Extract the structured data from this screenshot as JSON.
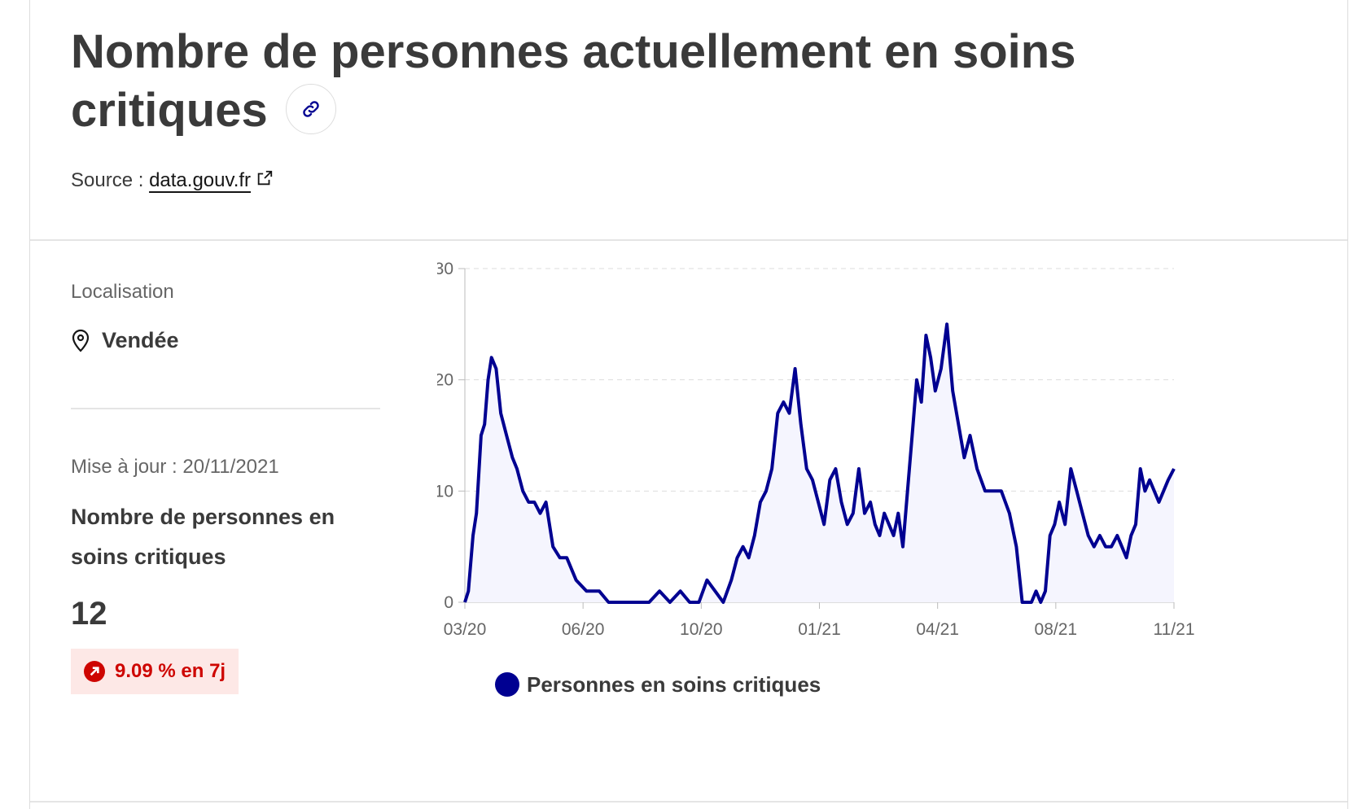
{
  "header": {
    "title": "Nombre de personnes actuellement en soins critiques",
    "source_label": "Source :",
    "source_link": "data.gouv.fr"
  },
  "sidebar": {
    "location_label": "Localisation",
    "location_value": "Vendée",
    "update_text": "Mise à jour : 20/11/2021",
    "metric_title": "Nombre de personnes en soins critiques",
    "metric_value": "12",
    "trend_text": "9.09 % en 7j"
  },
  "colors": {
    "series": "#000091",
    "fill": "#f5f5fe",
    "trend": "#ce0500",
    "trend_bg": "#fde8e6"
  },
  "icons": {
    "link": "link-icon",
    "external": "external-link-icon",
    "location": "map-pin-icon",
    "trend": "arrow-up-right-icon"
  },
  "chart_data": {
    "type": "area",
    "title": "",
    "xlabel": "",
    "ylabel": "",
    "ylim": [
      0,
      30
    ],
    "yticks": [
      "0",
      "10",
      "20",
      "30"
    ],
    "xticks": [
      "03/20",
      "06/20",
      "10/20",
      "01/21",
      "04/21",
      "08/21",
      "11/21"
    ],
    "grid": true,
    "legend_position": "bottom",
    "series": [
      {
        "name": "Personnes en soins critiques",
        "x": [
          "2020-03-18",
          "2020-03-21",
          "2020-03-25",
          "2020-03-28",
          "2020-04-01",
          "2020-04-04",
          "2020-04-07",
          "2020-04-10",
          "2020-04-14",
          "2020-04-18",
          "2020-04-23",
          "2020-04-28",
          "2020-05-02",
          "2020-05-07",
          "2020-05-12",
          "2020-05-17",
          "2020-05-22",
          "2020-05-27",
          "2020-06-02",
          "2020-06-08",
          "2020-06-14",
          "2020-06-22",
          "2020-07-01",
          "2020-07-12",
          "2020-07-20",
          "2020-07-28",
          "2020-08-05",
          "2020-08-14",
          "2020-08-24",
          "2020-09-02",
          "2020-09-11",
          "2020-09-20",
          "2020-09-28",
          "2020-10-06",
          "2020-10-13",
          "2020-10-20",
          "2020-10-27",
          "2020-11-03",
          "2020-11-08",
          "2020-11-13",
          "2020-11-18",
          "2020-11-23",
          "2020-11-28",
          "2020-12-03",
          "2020-12-08",
          "2020-12-13",
          "2020-12-18",
          "2020-12-23",
          "2020-12-28",
          "2021-01-02",
          "2021-01-07",
          "2021-01-12",
          "2021-01-17",
          "2021-01-22",
          "2021-01-27",
          "2021-02-01",
          "2021-02-06",
          "2021-02-11",
          "2021-02-16",
          "2021-02-21",
          "2021-02-26",
          "2021-03-03",
          "2021-03-07",
          "2021-03-11",
          "2021-03-15",
          "2021-03-19",
          "2021-03-23",
          "2021-03-27",
          "2021-03-31",
          "2021-04-04",
          "2021-04-08",
          "2021-04-12",
          "2021-04-16",
          "2021-04-20",
          "2021-04-24",
          "2021-04-28",
          "2021-05-03",
          "2021-05-08",
          "2021-05-13",
          "2021-05-18",
          "2021-05-23",
          "2021-05-28",
          "2021-06-03",
          "2021-06-10",
          "2021-06-17",
          "2021-06-24",
          "2021-07-01",
          "2021-07-07",
          "2021-07-12",
          "2021-07-16",
          "2021-07-20",
          "2021-07-24",
          "2021-07-28",
          "2021-08-01",
          "2021-08-05",
          "2021-08-09",
          "2021-08-13",
          "2021-08-18",
          "2021-08-23",
          "2021-08-28",
          "2021-09-02",
          "2021-09-07",
          "2021-09-12",
          "2021-09-17",
          "2021-09-22",
          "2021-09-27",
          "2021-10-02",
          "2021-10-06",
          "2021-10-10",
          "2021-10-14",
          "2021-10-18",
          "2021-10-22",
          "2021-10-26",
          "2021-10-30",
          "2021-11-03",
          "2021-11-07",
          "2021-11-11",
          "2021-11-15",
          "2021-11-20"
        ],
        "values": [
          0,
          1,
          6,
          8,
          15,
          16,
          20,
          22,
          21,
          17,
          15,
          13,
          12,
          10,
          9,
          9,
          8,
          9,
          5,
          4,
          4,
          2,
          1,
          1,
          0,
          0,
          0,
          0,
          0,
          1,
          0,
          1,
          0,
          0,
          2,
          1,
          0,
          2,
          4,
          5,
          4,
          6,
          9,
          10,
          12,
          17,
          18,
          17,
          21,
          16,
          12,
          11,
          9,
          7,
          11,
          12,
          9,
          7,
          8,
          12,
          8,
          9,
          7,
          6,
          8,
          7,
          6,
          8,
          5,
          10,
          15,
          20,
          18,
          24,
          22,
          19,
          21,
          25,
          19,
          16,
          13,
          15,
          12,
          10,
          10,
          10,
          8,
          5,
          0,
          0,
          0,
          1,
          0,
          1,
          6,
          7,
          9,
          7,
          12,
          10,
          8,
          6,
          5,
          6,
          5,
          5,
          6,
          5,
          4,
          6,
          7,
          12,
          10,
          11,
          10,
          9,
          10,
          11,
          12
        ]
      }
    ]
  }
}
